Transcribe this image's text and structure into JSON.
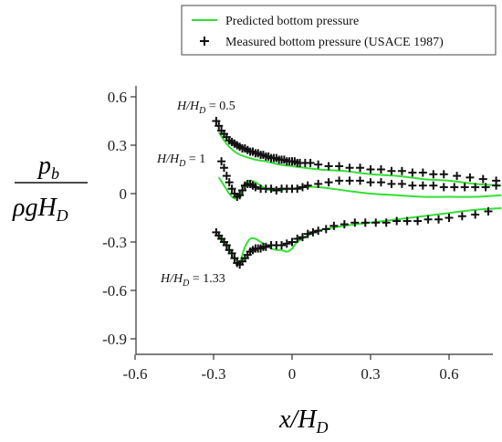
{
  "chart_data": {
    "type": "line",
    "xlim": [
      -0.6,
      0.8
    ],
    "ylim": [
      -1.0,
      0.7
    ],
    "xticks": [
      "-0.6",
      "-0.3",
      "0",
      "0.3",
      "0.6"
    ],
    "yticks": [
      "0.6",
      "0.3",
      "0",
      "-0.3",
      "-0.6",
      "-0.9"
    ],
    "ylabel_num": "p",
    "ylabel_num_sub": "b",
    "ylabel_den": "ρgH",
    "ylabel_den_sub": "D",
    "xlabel_main": "x/H",
    "xlabel_sub": "D",
    "legend": {
      "position": "top-right",
      "predicted": "Predicted  bottom pressure",
      "measured": "Measured bottom pressure (USACE 1987)"
    },
    "colors": {
      "predicted": "#33e033",
      "measured": "#111111"
    },
    "annotations": [
      {
        "prefix": "H/H",
        "sub": "D",
        "suffix": " = 0.5"
      },
      {
        "prefix": "H/H",
        "sub": "D",
        "suffix": " = 1"
      },
      {
        "prefix": "H/H",
        "sub": "D",
        "suffix": " = 1.33"
      }
    ],
    "series": [
      {
        "kind": "predicted",
        "x": [
          -0.28,
          -0.26,
          -0.24,
          -0.21,
          -0.18,
          -0.14,
          -0.1,
          -0.05,
          0,
          0.1,
          0.2,
          0.3,
          0.4,
          0.5,
          0.6,
          0.7,
          0.8
        ],
        "y": [
          0.38,
          0.33,
          0.29,
          0.25,
          0.23,
          0.21,
          0.2,
          0.18,
          0.17,
          0.15,
          0.14,
          0.12,
          0.11,
          0.09,
          0.08,
          0.06,
          0.05
        ]
      },
      {
        "kind": "predicted",
        "x": [
          -0.28,
          -0.26,
          -0.24,
          -0.22,
          -0.2,
          -0.18,
          -0.16,
          -0.14,
          -0.12,
          -0.1,
          -0.08,
          -0.05,
          -0.02,
          0,
          0.05,
          0.1,
          0.2,
          0.3,
          0.4,
          0.5,
          0.6,
          0.7,
          0.8
        ],
        "y": [
          0.1,
          0.05,
          0.0,
          -0.03,
          -0.01,
          0.06,
          0.08,
          0.07,
          0.05,
          0.03,
          0.02,
          0.02,
          0.03,
          0.03,
          0.04,
          0.04,
          0.02,
          0.0,
          -0.01,
          -0.02,
          -0.02,
          -0.02,
          -0.01
        ]
      },
      {
        "kind": "predicted",
        "x": [
          -0.28,
          -0.26,
          -0.24,
          -0.22,
          -0.2,
          -0.18,
          -0.16,
          -0.14,
          -0.12,
          -0.1,
          -0.08,
          -0.06,
          -0.04,
          -0.02,
          0,
          0.02,
          0.06,
          0.1,
          0.2,
          0.3,
          0.4,
          0.5,
          0.6,
          0.7,
          0.8
        ],
        "y": [
          -0.26,
          -0.3,
          -0.35,
          -0.4,
          -0.42,
          -0.33,
          -0.28,
          -0.28,
          -0.3,
          -0.32,
          -0.34,
          -0.35,
          -0.35,
          -0.36,
          -0.34,
          -0.3,
          -0.26,
          -0.23,
          -0.2,
          -0.18,
          -0.16,
          -0.14,
          -0.12,
          -0.1,
          -0.09
        ]
      },
      {
        "kind": "measured",
        "x": [
          -0.29,
          -0.28,
          -0.27,
          -0.26,
          -0.25,
          -0.24,
          -0.23,
          -0.22,
          -0.21,
          -0.2,
          -0.19,
          -0.18,
          -0.17,
          -0.16,
          -0.15,
          -0.14,
          -0.13,
          -0.12,
          -0.11,
          -0.1,
          -0.09,
          -0.08,
          -0.07,
          -0.06,
          -0.05,
          -0.04,
          -0.03,
          -0.02,
          -0.01,
          0.0,
          0.01,
          0.02,
          0.03,
          0.05,
          0.07,
          0.1,
          0.14,
          0.18,
          0.22,
          0.26,
          0.3,
          0.34,
          0.38,
          0.42,
          0.46,
          0.5,
          0.54,
          0.58,
          0.63,
          0.68,
          0.73,
          0.78
        ],
        "y": [
          0.45,
          0.42,
          0.39,
          0.37,
          0.35,
          0.33,
          0.32,
          0.31,
          0.3,
          0.29,
          0.28,
          0.28,
          0.27,
          0.26,
          0.26,
          0.25,
          0.25,
          0.24,
          0.24,
          0.23,
          0.23,
          0.22,
          0.22,
          0.22,
          0.21,
          0.21,
          0.21,
          0.2,
          0.2,
          0.2,
          0.2,
          0.19,
          0.19,
          0.19,
          0.19,
          0.18,
          0.17,
          0.17,
          0.16,
          0.16,
          0.15,
          0.15,
          0.14,
          0.14,
          0.13,
          0.13,
          0.12,
          0.12,
          0.11,
          0.1,
          0.09,
          0.08
        ]
      },
      {
        "kind": "measured",
        "x": [
          -0.27,
          -0.26,
          -0.25,
          -0.24,
          -0.23,
          -0.22,
          -0.21,
          -0.2,
          -0.19,
          -0.18,
          -0.17,
          -0.16,
          -0.15,
          -0.14,
          -0.12,
          -0.1,
          -0.08,
          -0.06,
          -0.04,
          -0.02,
          0.0,
          0.02,
          0.04,
          0.06,
          0.1,
          0.14,
          0.18,
          0.22,
          0.26,
          0.3,
          0.34,
          0.38,
          0.42,
          0.46,
          0.5,
          0.54,
          0.58,
          0.62,
          0.66,
          0.7,
          0.74,
          0.78
        ],
        "y": [
          0.2,
          0.16,
          0.11,
          0.07,
          0.03,
          0.0,
          -0.02,
          -0.01,
          0.02,
          0.05,
          0.06,
          0.06,
          0.05,
          0.04,
          0.03,
          0.03,
          0.03,
          0.02,
          0.03,
          0.03,
          0.03,
          0.03,
          0.04,
          0.05,
          0.06,
          0.07,
          0.08,
          0.08,
          0.08,
          0.07,
          0.07,
          0.06,
          0.06,
          0.05,
          0.05,
          0.05,
          0.04,
          0.04,
          0.04,
          0.04,
          0.04,
          0.05
        ]
      },
      {
        "kind": "measured",
        "x": [
          -0.29,
          -0.28,
          -0.27,
          -0.26,
          -0.25,
          -0.24,
          -0.23,
          -0.22,
          -0.21,
          -0.2,
          -0.19,
          -0.18,
          -0.17,
          -0.16,
          -0.15,
          -0.14,
          -0.13,
          -0.12,
          -0.11,
          -0.1,
          -0.08,
          -0.06,
          -0.04,
          -0.02,
          0.0,
          0.02,
          0.04,
          0.06,
          0.08,
          0.1,
          0.13,
          0.16,
          0.2,
          0.24,
          0.28,
          0.32,
          0.36,
          0.4,
          0.44,
          0.48,
          0.52,
          0.56,
          0.6,
          0.65,
          0.7,
          0.75
        ],
        "y": [
          -0.24,
          -0.26,
          -0.28,
          -0.3,
          -0.32,
          -0.35,
          -0.37,
          -0.4,
          -0.43,
          -0.44,
          -0.42,
          -0.4,
          -0.38,
          -0.36,
          -0.35,
          -0.34,
          -0.34,
          -0.34,
          -0.33,
          -0.33,
          -0.32,
          -0.32,
          -0.32,
          -0.31,
          -0.3,
          -0.28,
          -0.27,
          -0.25,
          -0.24,
          -0.23,
          -0.22,
          -0.2,
          -0.19,
          -0.18,
          -0.18,
          -0.18,
          -0.18,
          -0.17,
          -0.17,
          -0.17,
          -0.16,
          -0.16,
          -0.15,
          -0.14,
          -0.13,
          -0.11
        ]
      }
    ]
  }
}
